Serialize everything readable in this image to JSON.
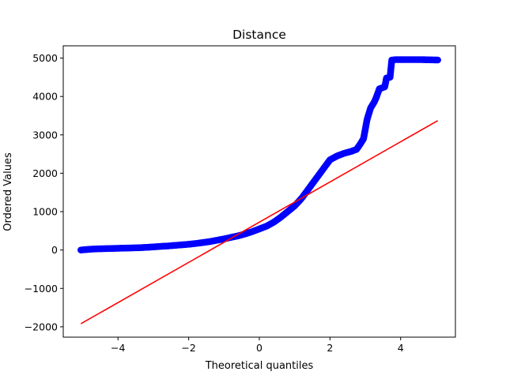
{
  "chart_data": {
    "type": "scatter",
    "title": "Distance",
    "xlabel": "Theoretical quantiles",
    "ylabel": "Ordered Values",
    "xlim": [
      -5.55,
      5.55
    ],
    "ylim": [
      -2270,
      5320
    ],
    "xticks": [
      -4,
      -2,
      0,
      2,
      4
    ],
    "xtick_labels": [
      "−4",
      "−2",
      "0",
      "2",
      "4"
    ],
    "yticks": [
      -2000,
      -1000,
      0,
      1000,
      2000,
      3000,
      4000,
      5000
    ],
    "ytick_labels": [
      "−2000",
      "−1000",
      "0",
      "1000",
      "2000",
      "3000",
      "4000",
      "5000"
    ],
    "grid": false,
    "marker_color": "#0000ff",
    "line_color": "#ff0000",
    "points": {
      "x": [
        -5.05,
        -4.8,
        -4.6,
        -4.4,
        -4.2,
        -4.0,
        -3.8,
        -3.6,
        -3.4,
        -3.2,
        -3.0,
        -2.8,
        -2.6,
        -2.4,
        -2.2,
        -2.0,
        -1.8,
        -1.6,
        -1.4,
        -1.2,
        -1.0,
        -0.8,
        -0.6,
        -0.4,
        -0.2,
        0.0,
        0.2,
        0.4,
        0.6,
        0.8,
        1.0,
        1.2,
        1.4,
        1.6,
        1.8,
        2.0,
        2.2,
        2.4,
        2.6,
        2.75,
        2.85,
        2.95,
        3.0,
        3.05,
        3.15,
        3.25,
        3.3,
        3.4,
        3.55,
        3.6,
        3.7,
        3.75,
        3.85,
        4.0,
        4.3,
        4.6,
        4.8,
        5.05
      ],
      "y": [
        0,
        20,
        30,
        35,
        40,
        45,
        50,
        55,
        60,
        70,
        80,
        95,
        105,
        120,
        135,
        150,
        170,
        195,
        220,
        255,
        290,
        330,
        370,
        420,
        480,
        550,
        620,
        720,
        850,
        1000,
        1150,
        1350,
        1600,
        1850,
        2100,
        2350,
        2450,
        2520,
        2570,
        2620,
        2750,
        2900,
        3150,
        3400,
        3700,
        3850,
        3950,
        4200,
        4250,
        4480,
        4500,
        4950,
        4960,
        4960,
        4960,
        4960,
        4955,
        4950
      ]
    },
    "fit_line": {
      "x": [
        -5.05,
        5.05
      ],
      "y": [
        -1920,
        3370
      ]
    }
  }
}
